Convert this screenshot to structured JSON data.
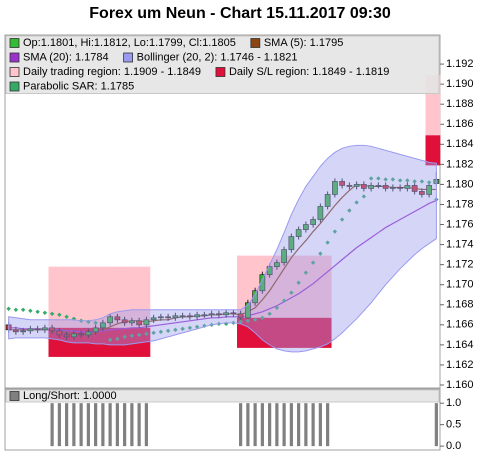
{
  "chart_data": [
    {
      "type": "candlestick",
      "title": "Forex um Neun - Chart 15.11.2017 09:30",
      "ylim": [
        1.1597,
        1.1949
      ],
      "yticks": [
        {
          "value": 1.16,
          "label": "1.160"
        },
        {
          "value": 1.162,
          "label": "1.162"
        },
        {
          "value": 1.164,
          "label": "1.164"
        },
        {
          "value": 1.166,
          "label": "1.166"
        },
        {
          "value": 1.168,
          "label": "1.168"
        },
        {
          "value": 1.17,
          "label": "1.170"
        },
        {
          "value": 1.172,
          "label": "1.172"
        },
        {
          "value": 1.174,
          "label": "1.174"
        },
        {
          "value": 1.176,
          "label": "1.176"
        },
        {
          "value": 1.178,
          "label": "1.178"
        },
        {
          "value": 1.18,
          "label": "1.180"
        },
        {
          "value": 1.182,
          "label": "1.182"
        },
        {
          "value": 1.184,
          "label": "1.184"
        },
        {
          "value": 1.186,
          "label": "1.186"
        },
        {
          "value": 1.188,
          "label": "1.188"
        },
        {
          "value": 1.19,
          "label": "1.190"
        },
        {
          "value": 1.192,
          "label": "1.192"
        }
      ],
      "series": [
        {
          "name": "Op:1.1801, Hi:1.1812, Lo:1.1799, Cl:1.1805",
          "style": "candles",
          "color": "#33bb33",
          "down_color": "#dd2222",
          "open": [
            1.166,
            1.1655,
            1.1653,
            1.1654,
            1.1656,
            1.1655,
            1.1657,
            1.1654,
            1.165,
            1.1648,
            1.1651,
            1.165,
            1.1653,
            1.1657,
            1.1662,
            1.1668,
            1.1665,
            1.1662,
            1.1664,
            1.166,
            1.1665,
            1.1667,
            1.1668,
            1.1667,
            1.1669,
            1.1669,
            1.1668,
            1.167,
            1.167,
            1.1671,
            1.167,
            1.1672,
            1.1671,
            1.1667,
            1.1682,
            1.1694,
            1.171,
            1.1718,
            1.1722,
            1.1735,
            1.1748,
            1.1755,
            1.176,
            1.1765,
            1.1778,
            1.179,
            1.1803,
            1.1799,
            1.1798,
            1.18,
            1.1796,
            1.1799,
            1.1799,
            1.1796,
            1.1797,
            1.1796,
            1.1799,
            1.1793,
            1.179,
            1.1801
          ],
          "high": [
            1.1663,
            1.1658,
            1.1657,
            1.1659,
            1.1659,
            1.166,
            1.166,
            1.1657,
            1.1653,
            1.1654,
            1.1654,
            1.1656,
            1.166,
            1.1665,
            1.1671,
            1.1671,
            1.1668,
            1.1667,
            1.1667,
            1.1668,
            1.167,
            1.1671,
            1.1671,
            1.1672,
            1.1672,
            1.1672,
            1.1673,
            1.1673,
            1.1674,
            1.1674,
            1.1675,
            1.1675,
            1.1674,
            1.1685,
            1.1697,
            1.1713,
            1.1721,
            1.1725,
            1.1738,
            1.1751,
            1.1758,
            1.1763,
            1.1768,
            1.1781,
            1.1793,
            1.1806,
            1.1806,
            1.1802,
            1.1803,
            1.1803,
            1.1802,
            1.1802,
            1.1802,
            1.18,
            1.18,
            1.1802,
            1.1802,
            1.1796,
            1.1802,
            1.1812
          ],
          "low": [
            1.1652,
            1.165,
            1.165,
            1.1651,
            1.1652,
            1.1652,
            1.1651,
            1.1647,
            1.1645,
            1.1645,
            1.1647,
            1.1647,
            1.165,
            1.1654,
            1.1659,
            1.1662,
            1.1659,
            1.1659,
            1.1657,
            1.1657,
            1.1662,
            1.1664,
            1.1664,
            1.1664,
            1.1666,
            1.1665,
            1.1665,
            1.1667,
            1.1667,
            1.1667,
            1.1667,
            1.1668,
            1.1664,
            1.1664,
            1.1679,
            1.1691,
            1.1707,
            1.1715,
            1.1719,
            1.1732,
            1.1745,
            1.1752,
            1.1757,
            1.1762,
            1.1775,
            1.1787,
            1.1796,
            1.1795,
            1.1795,
            1.1793,
            1.1793,
            1.1796,
            1.1793,
            1.1793,
            1.1793,
            1.1793,
            1.179,
            1.1787,
            1.1787,
            1.1799
          ],
          "close": [
            1.1655,
            1.1653,
            1.1654,
            1.1656,
            1.1655,
            1.1657,
            1.1654,
            1.165,
            1.1648,
            1.1651,
            1.165,
            1.1653,
            1.1657,
            1.1662,
            1.1668,
            1.1665,
            1.1662,
            1.1664,
            1.166,
            1.1665,
            1.1667,
            1.1668,
            1.1667,
            1.1669,
            1.1669,
            1.1668,
            1.167,
            1.167,
            1.1671,
            1.167,
            1.1672,
            1.1671,
            1.1667,
            1.1682,
            1.1694,
            1.171,
            1.1718,
            1.1722,
            1.1735,
            1.1748,
            1.1755,
            1.176,
            1.1765,
            1.1778,
            1.179,
            1.1803,
            1.1799,
            1.1798,
            1.18,
            1.1796,
            1.1799,
            1.1799,
            1.1796,
            1.1797,
            1.1796,
            1.1799,
            1.1793,
            1.179,
            1.1799,
            1.1805
          ]
        },
        {
          "name": "SMA (5): 1.1795",
          "style": "line",
          "color": "#8b4513",
          "values": [
            1.1655,
            1.1655,
            1.1655,
            1.1655,
            1.1655,
            1.1655,
            1.1655,
            1.1654,
            1.1652,
            1.1651,
            1.165,
            1.165,
            1.1652,
            1.1655,
            1.1658,
            1.1661,
            1.1663,
            1.1664,
            1.1664,
            1.1663,
            1.1664,
            1.1665,
            1.1665,
            1.1667,
            1.1668,
            1.1668,
            1.1669,
            1.1669,
            1.167,
            1.167,
            1.1671,
            1.1671,
            1.167,
            1.1673,
            1.1677,
            1.1685,
            1.1694,
            1.1705,
            1.1716,
            1.1727,
            1.1736,
            1.1744,
            1.1753,
            1.1761,
            1.177,
            1.1779,
            1.1787,
            1.1794,
            1.18,
            1.1799,
            1.1798,
            1.1798,
            1.1798,
            1.1797,
            1.1797,
            1.1797,
            1.1796,
            1.1795,
            1.1795,
            1.1795
          ]
        },
        {
          "name": "SMA (20): 1.1784",
          "style": "line",
          "color": "#9933cc",
          "values": [
            1.1657,
            1.1657,
            1.1656,
            1.1656,
            1.1656,
            1.1656,
            1.1655,
            1.1655,
            1.1654,
            1.1654,
            1.1653,
            1.1653,
            1.1653,
            1.1654,
            1.1655,
            1.1656,
            1.1656,
            1.1657,
            1.1657,
            1.1658,
            1.1659,
            1.166,
            1.1661,
            1.1662,
            1.1663,
            1.1664,
            1.1665,
            1.1666,
            1.1667,
            1.1667,
            1.1668,
            1.1668,
            1.1668,
            1.1669,
            1.1671,
            1.1673,
            1.1676,
            1.1679,
            1.1683,
            1.1687,
            1.1691,
            1.1696,
            1.1701,
            1.1707,
            1.1713,
            1.1719,
            1.1725,
            1.1731,
            1.1737,
            1.1742,
            1.1747,
            1.1752,
            1.1757,
            1.1761,
            1.1765,
            1.1769,
            1.1773,
            1.1777,
            1.1781,
            1.1784
          ]
        },
        {
          "name": "Bollinger (20, 2): 1.1746 - 1.1821",
          "style": "band",
          "color": "#9a9aee",
          "upper": [
            1.1668,
            1.1667,
            1.1666,
            1.1665,
            1.1665,
            1.1665,
            1.1665,
            1.1665,
            1.1665,
            1.1665,
            1.1664,
            1.1664,
            1.1665,
            1.1667,
            1.1671,
            1.1673,
            1.1674,
            1.1675,
            1.1675,
            1.1675,
            1.1675,
            1.1675,
            1.1675,
            1.1675,
            1.1675,
            1.1675,
            1.1675,
            1.1675,
            1.1675,
            1.1675,
            1.1675,
            1.1675,
            1.1675,
            1.168,
            1.169,
            1.1705,
            1.172,
            1.1735,
            1.1752,
            1.177,
            1.1785,
            1.1798,
            1.1808,
            1.1818,
            1.1826,
            1.1832,
            1.1836,
            1.1838,
            1.1839,
            1.1839,
            1.1838,
            1.1836,
            1.1834,
            1.1832,
            1.183,
            1.1828,
            1.1826,
            1.1824,
            1.1822,
            1.1821
          ],
          "lower": [
            1.1646,
            1.1647,
            1.1647,
            1.1647,
            1.1647,
            1.1647,
            1.1646,
            1.1645,
            1.1643,
            1.1642,
            1.1642,
            1.1642,
            1.1641,
            1.1641,
            1.164,
            1.164,
            1.164,
            1.1641,
            1.1642,
            1.1643,
            1.1644,
            1.1646,
            1.1648,
            1.165,
            1.1652,
            1.1654,
            1.1656,
            1.1658,
            1.166,
            1.1661,
            1.1662,
            1.1662,
            1.1661,
            1.1658,
            1.1652,
            1.1645,
            1.164,
            1.1636,
            1.1634,
            1.1633,
            1.1633,
            1.1634,
            1.1636,
            1.1638,
            1.1641,
            1.1646,
            1.1652,
            1.1659,
            1.1666,
            1.1674,
            1.1682,
            1.1691,
            1.17,
            1.1708,
            1.1716,
            1.1723,
            1.173,
            1.1736,
            1.1741,
            1.1746
          ]
        },
        {
          "name": "Daily trading region: 1.1909 - 1.1849",
          "style": "region",
          "color": "#ffc4cc",
          "upper": [
            null,
            null,
            null,
            null,
            null,
            null,
            1.1718,
            1.1718,
            1.1718,
            1.1718,
            1.1718,
            1.1718,
            1.1718,
            1.1718,
            1.1718,
            1.1718,
            1.1718,
            1.1718,
            1.1718,
            1.1718,
            null,
            null,
            null,
            null,
            null,
            null,
            null,
            null,
            null,
            null,
            null,
            null,
            1.1729,
            1.1729,
            1.1729,
            1.1729,
            1.1729,
            1.1729,
            1.1729,
            1.1729,
            1.1729,
            1.1729,
            1.1729,
            1.1729,
            1.1729,
            null,
            null,
            null,
            null,
            null,
            null,
            null,
            null,
            null,
            null,
            null,
            null,
            null,
            1.1909,
            1.1909
          ],
          "lower": [
            null,
            null,
            null,
            null,
            null,
            null,
            1.1657,
            1.1657,
            1.1657,
            1.1657,
            1.1657,
            1.1657,
            1.1657,
            1.1657,
            1.1657,
            1.1657,
            1.1657,
            1.1657,
            1.1657,
            1.1657,
            null,
            null,
            null,
            null,
            null,
            null,
            null,
            null,
            null,
            null,
            null,
            null,
            1.1667,
            1.1667,
            1.1667,
            1.1667,
            1.1667,
            1.1667,
            1.1667,
            1.1667,
            1.1667,
            1.1667,
            1.1667,
            1.1667,
            1.1667,
            null,
            null,
            null,
            null,
            null,
            null,
            null,
            null,
            null,
            null,
            null,
            null,
            null,
            1.1849,
            1.1849
          ]
        },
        {
          "name": "Daily S/L region: 1.1849 - 1.1819",
          "style": "region",
          "color": "#e0103a",
          "upper": [
            null,
            null,
            null,
            null,
            null,
            null,
            1.1657,
            1.1657,
            1.1657,
            1.1657,
            1.1657,
            1.1657,
            1.1657,
            1.1657,
            1.1657,
            1.1657,
            1.1657,
            1.1657,
            1.1657,
            1.1657,
            null,
            null,
            null,
            null,
            null,
            null,
            null,
            null,
            null,
            null,
            null,
            null,
            1.1667,
            1.1667,
            1.1667,
            1.1667,
            1.1667,
            1.1667,
            1.1667,
            1.1667,
            1.1667,
            1.1667,
            1.1667,
            1.1667,
            1.1667,
            null,
            null,
            null,
            null,
            null,
            null,
            null,
            null,
            null,
            null,
            null,
            null,
            null,
            1.1849,
            1.1849
          ],
          "lower": [
            null,
            null,
            null,
            null,
            null,
            null,
            1.1628,
            1.1628,
            1.1628,
            1.1628,
            1.1628,
            1.1628,
            1.1628,
            1.1628,
            1.1628,
            1.1628,
            1.1628,
            1.1628,
            1.1628,
            1.1628,
            null,
            null,
            null,
            null,
            null,
            null,
            null,
            null,
            null,
            null,
            null,
            null,
            1.1637,
            1.1637,
            1.1637,
            1.1637,
            1.1637,
            1.1637,
            1.1637,
            1.1637,
            1.1637,
            1.1637,
            1.1637,
            1.1637,
            1.1637,
            null,
            null,
            null,
            null,
            null,
            null,
            null,
            null,
            null,
            null,
            null,
            null,
            null,
            1.1819,
            1.1819
          ]
        },
        {
          "name": "Parabolic SAR: 1.1785",
          "style": "dots",
          "color": "#33aa66",
          "values": [
            1.1676,
            1.1675,
            1.1675,
            1.1674,
            1.1673,
            1.1672,
            1.1671,
            1.167,
            1.1668,
            1.1666,
            1.1664,
            1.1663,
            1.1662,
            1.166,
            1.1645,
            1.1646,
            1.1648,
            1.1649,
            1.165,
            1.1651,
            1.1652,
            1.1653,
            1.1654,
            1.1655,
            1.1656,
            1.1657,
            1.1658,
            1.1659,
            1.166,
            1.1661,
            1.1661,
            1.1662,
            1.1663,
            1.1664,
            1.1665,
            1.1667,
            1.1671,
            1.1677,
            1.1684,
            1.1692,
            1.1702,
            1.1712,
            1.1722,
            1.1731,
            1.1742,
            1.1753,
            1.1765,
            1.1774,
            1.1782,
            1.1788,
            1.1806,
            1.1806,
            1.1805,
            1.1805,
            1.1804,
            1.1804,
            1.1803,
            1.1803,
            1.1802,
            1.1785
          ]
        }
      ]
    },
    {
      "type": "bar",
      "ylim": [
        -0.09,
        1.33
      ],
      "yticks": [
        {
          "value": 0,
          "label": "0.0"
        },
        {
          "value": 0.5,
          "label": "0.5"
        },
        {
          "value": 1,
          "label": "1.0"
        }
      ],
      "series": [
        {
          "name": "Long/Short: 1.0000",
          "color": "#808080",
          "values": [
            0,
            0,
            0,
            0,
            0,
            0,
            1,
            1,
            1,
            1,
            1,
            1,
            1,
            1,
            1,
            1,
            1,
            1,
            1,
            1,
            0,
            0,
            0,
            0,
            0,
            0,
            0,
            0,
            0,
            0,
            0,
            0,
            1,
            1,
            1,
            1,
            1,
            1,
            1,
            1,
            1,
            1,
            1,
            1,
            1,
            0,
            0,
            0,
            0,
            0,
            0,
            0,
            0,
            0,
            0,
            0,
            0,
            0,
            0,
            1
          ]
        }
      ]
    }
  ]
}
